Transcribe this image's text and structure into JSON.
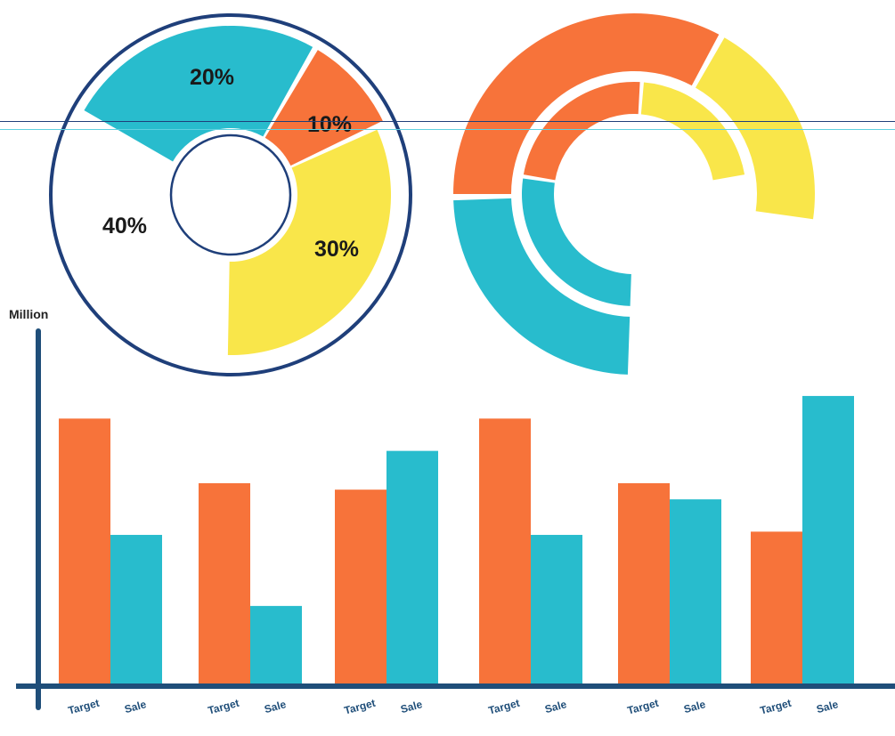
{
  "colors": {
    "orange": "#f7733a",
    "teal": "#28bccd",
    "yellow": "#f9e64a",
    "navy": "#1f3f7a",
    "axis": "#1f4e79"
  },
  "chart_data": [
    {
      "type": "pie",
      "variant": "donut",
      "slices": [
        {
          "label": "20%",
          "value": 20,
          "color": "#28bccd"
        },
        {
          "label": "10%",
          "value": 10,
          "color": "#f7733a"
        },
        {
          "label": "30%",
          "value": 30,
          "color": "#f9e64a"
        },
        {
          "label": "40%",
          "value": 40,
          "color": "#ffffff"
        }
      ]
    },
    {
      "type": "pie",
      "variant": "concentric-arcs",
      "rings": [
        {
          "ring": "outer",
          "segments": [
            {
              "color": "#f7733a"
            },
            {
              "color": "#f9e64a"
            },
            {
              "color": "#28bccd"
            }
          ]
        },
        {
          "ring": "inner",
          "segments": [
            {
              "color": "#f7733a"
            },
            {
              "color": "#f9e64a"
            },
            {
              "color": "#28bccd"
            }
          ]
        }
      ]
    },
    {
      "type": "bar",
      "ylabel": "Million",
      "grid": false,
      "legend": "none",
      "ylim": [
        0,
        100
      ],
      "groups": 6,
      "series": [
        {
          "name": "Target",
          "color": "#f7733a",
          "values": [
            82,
            62,
            60,
            82,
            62,
            47
          ]
        },
        {
          "name": "Sale",
          "color": "#28bccd",
          "values": [
            46,
            24,
            72,
            46,
            57,
            89
          ]
        }
      ]
    }
  ]
}
